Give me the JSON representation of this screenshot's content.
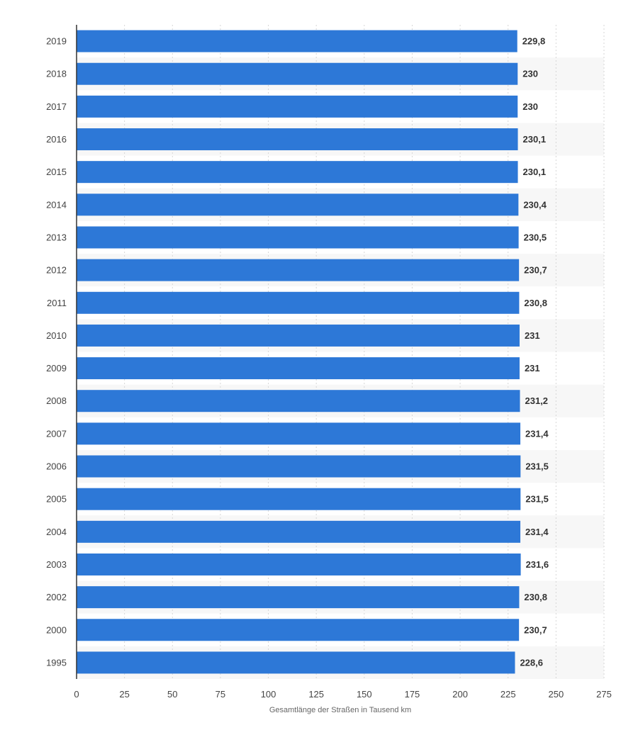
{
  "chart_data": {
    "type": "bar",
    "orientation": "horizontal",
    "categories": [
      "2019",
      "2018",
      "2017",
      "2016",
      "2015",
      "2014",
      "2013",
      "2012",
      "2011",
      "2010",
      "2009",
      "2008",
      "2007",
      "2006",
      "2005",
      "2004",
      "2003",
      "2002",
      "2000",
      "1995"
    ],
    "values": [
      229.8,
      230,
      230,
      230.1,
      230.1,
      230.4,
      230.5,
      230.7,
      230.8,
      231,
      231,
      231.2,
      231.4,
      231.5,
      231.5,
      231.4,
      231.6,
      230.8,
      230.7,
      228.6
    ],
    "value_labels": [
      "229,8",
      "230",
      "230",
      "230,1",
      "230,1",
      "230,4",
      "230,5",
      "230,7",
      "230,8",
      "231",
      "231",
      "231,2",
      "231,4",
      "231,5",
      "231,5",
      "231,4",
      "231,6",
      "230,8",
      "230,7",
      "228,6"
    ],
    "xlabel": "Gesamtlänge der Straßen in Tausend km",
    "ylabel": "",
    "title": "",
    "xlim": [
      0,
      275
    ],
    "xticks": [
      0,
      25,
      50,
      75,
      100,
      125,
      150,
      175,
      200,
      225,
      250,
      275
    ],
    "grid": true,
    "legend": "none",
    "colors": {
      "bar": "#2d78d7",
      "grid": "#d6d6d6",
      "band": "#f7f7f7",
      "axis": "#333333"
    }
  }
}
